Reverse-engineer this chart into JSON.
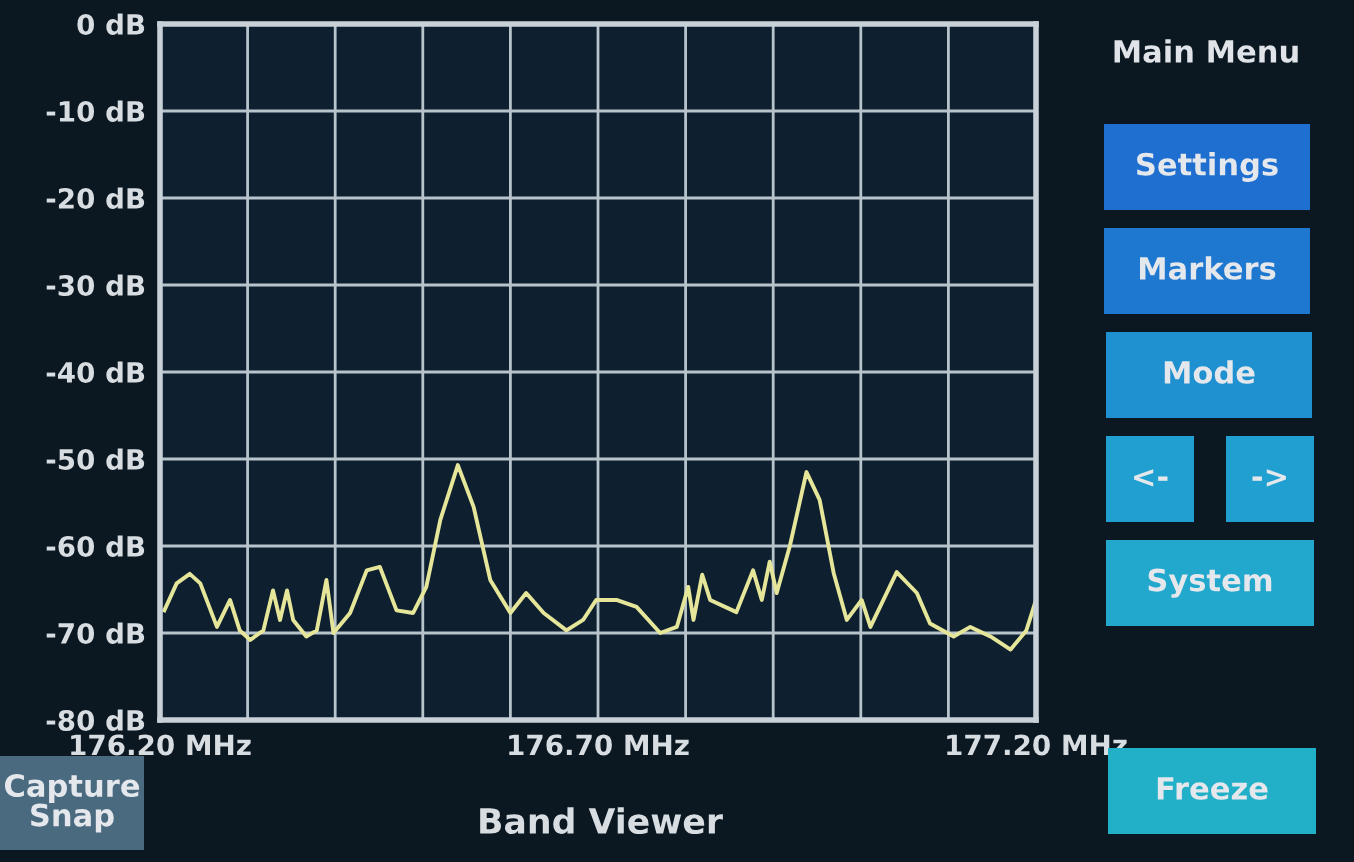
{
  "chart_data": {
    "type": "line",
    "title": "Band Viewer",
    "x": [
      176.205,
      176.219,
      176.234,
      176.246,
      176.265,
      176.28,
      176.291,
      176.303,
      176.318,
      176.329,
      176.337,
      176.345,
      176.352,
      176.367,
      176.379,
      176.39,
      176.398,
      176.417,
      176.436,
      176.451,
      176.47,
      176.489,
      176.504,
      176.52,
      176.54,
      176.558,
      176.577,
      176.6,
      176.618,
      176.638,
      176.664,
      176.683,
      176.698,
      176.721,
      176.744,
      176.771,
      176.79,
      176.803,
      176.809,
      176.819,
      176.828,
      176.858,
      176.877,
      176.887,
      176.896,
      176.904,
      176.919,
      176.938,
      176.953,
      176.969,
      176.984,
      177.001,
      177.011,
      177.041,
      177.064,
      177.079,
      177.106,
      177.125,
      177.148,
      177.171,
      177.189,
      177.2
    ],
    "series": [
      {
        "color": "#e6e69a",
        "values": [
          -67.4,
          -64.3,
          -63.2,
          -64.3,
          -69.3,
          -66.2,
          -69.7,
          -70.8,
          -69.7,
          -65.1,
          -68.5,
          -65.1,
          -68.5,
          -70.4,
          -69.7,
          -63.9,
          -70,
          -67.7,
          -62.8,
          -62.4,
          -67.4,
          -67.7,
          -64.7,
          -57,
          -50.7,
          -55.5,
          -63.9,
          -67.7,
          -65.4,
          -67.7,
          -69.7,
          -68.5,
          -66.2,
          -66.2,
          -67,
          -70,
          -69.3,
          -64.7,
          -68.5,
          -63.3,
          -66.2,
          -67.6,
          -62.8,
          -66.2,
          -61.8,
          -65.4,
          -60,
          -51.5,
          -54.7,
          -63.1,
          -68.5,
          -66.2,
          -69.3,
          -63,
          -65.4,
          -68.9,
          -70.4,
          -69.3,
          -70.4,
          -71.9,
          -69.7,
          -66.2
        ]
      }
    ],
    "xlim": [
      176.2,
      177.2
    ],
    "xticks": [
      {
        "value": 176.2,
        "label": "176.20 MHz"
      },
      {
        "value": 176.3,
        "label": null
      },
      {
        "value": 176.4,
        "label": null
      },
      {
        "value": 176.5,
        "label": null
      },
      {
        "value": 176.6,
        "label": null
      },
      {
        "value": 176.7,
        "label": "176.70 MHz"
      },
      {
        "value": 176.8,
        "label": null
      },
      {
        "value": 176.9,
        "label": null
      },
      {
        "value": 177.0,
        "label": null
      },
      {
        "value": 177.1,
        "label": null
      },
      {
        "value": 177.2,
        "label": "177.20 MHz"
      }
    ],
    "ylim": [
      -80,
      0
    ],
    "yticks": [
      {
        "value": 0,
        "label": "0 dB"
      },
      {
        "value": -10,
        "label": "-10 dB"
      },
      {
        "value": -20,
        "label": "-20 dB"
      },
      {
        "value": -30,
        "label": "-30 dB"
      },
      {
        "value": -40,
        "label": "-40 dB"
      },
      {
        "value": -50,
        "label": "-50 dB"
      },
      {
        "value": -60,
        "label": "-60 dB"
      },
      {
        "value": -70,
        "label": "-70 dB"
      },
      {
        "value": -80,
        "label": "-80 dB"
      }
    ],
    "grid": true,
    "annotations": [
      "Main Menu",
      "Settings",
      "Markers",
      "Mode",
      "<-",
      "->",
      "System",
      "Freeze",
      "Capture\nSnap"
    ]
  }
}
